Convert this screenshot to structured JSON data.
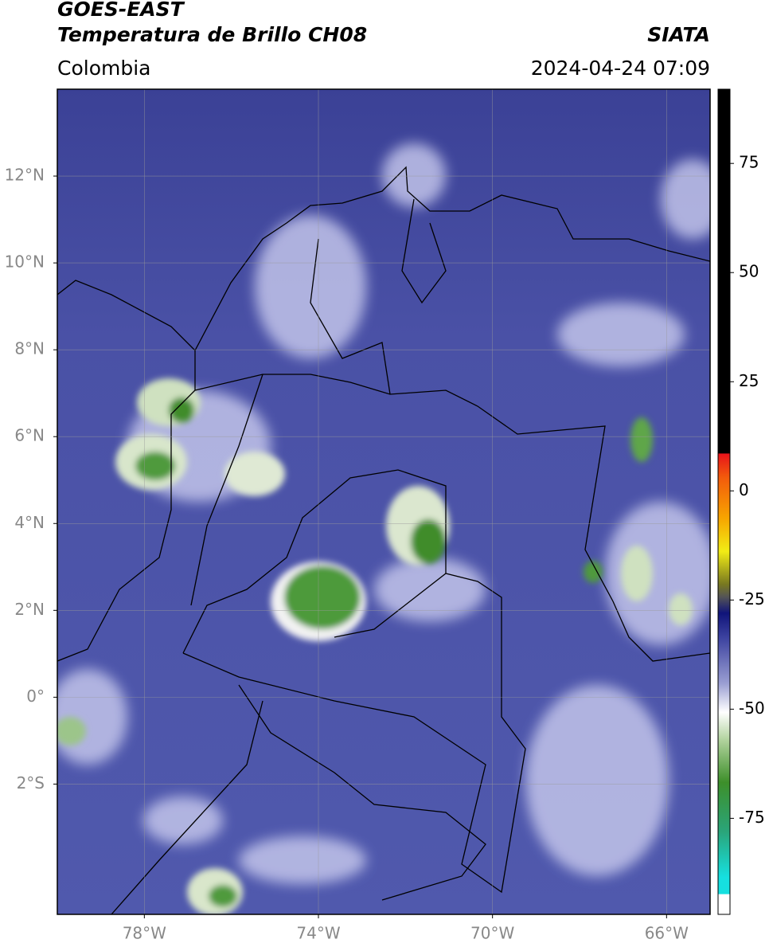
{
  "header": {
    "title": "GOES-EAST",
    "subtitle": "Temperatura de Brillo CH08",
    "source": "SIATA",
    "region": "Colombia",
    "datetime": "2024-04-24 07:09"
  },
  "map": {
    "xlim": [
      -80,
      -65
    ],
    "ylim": [
      -5,
      14
    ],
    "xticks": [
      {
        "value": -78,
        "label": "78°W"
      },
      {
        "value": -74,
        "label": "74°W"
      },
      {
        "value": -70,
        "label": "70°W"
      },
      {
        "value": -66,
        "label": "66°W"
      }
    ],
    "yticks": [
      {
        "value": 12,
        "label": "12°N"
      },
      {
        "value": 10,
        "label": "10°N"
      },
      {
        "value": 8,
        "label": "8°N"
      },
      {
        "value": 6,
        "label": "6°N"
      },
      {
        "value": 4,
        "label": "4°N"
      },
      {
        "value": 2,
        "label": "2°N"
      },
      {
        "value": 0,
        "label": "0°"
      },
      {
        "value": -2,
        "label": "2°S"
      }
    ],
    "grid": true
  },
  "colorbar": {
    "lim": [
      -97,
      92
    ],
    "ticks": [
      75,
      50,
      25,
      0,
      -25,
      -50,
      -75
    ]
  }
}
